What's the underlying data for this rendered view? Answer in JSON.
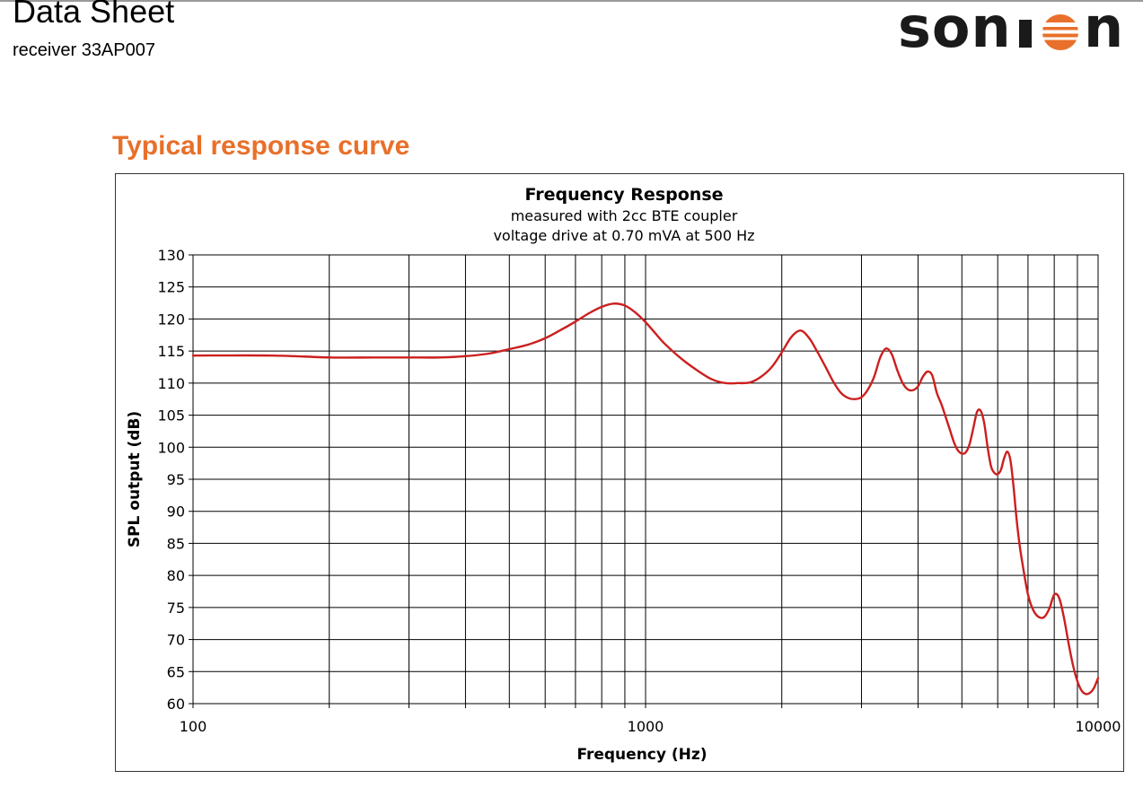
{
  "header": {
    "title": "Data Sheet",
    "subtitle": "receiver 33AP007",
    "logo_text": "sonion",
    "brand_color": "#1a1a1a",
    "logo_accent_color": "#e8702a"
  },
  "section": {
    "heading": "Typical response curve",
    "heading_color": "#e8702a"
  },
  "chart_data": {
    "type": "line",
    "title": "Frequency Response",
    "subtitle_lines": [
      "measured with 2cc BTE coupler",
      "voltage drive at 0.70 mVA at 500 Hz"
    ],
    "xlabel": "Frequency (Hz)",
    "ylabel": "SPL output (dB)",
    "x_scale": "log",
    "xlim": [
      100,
      10000
    ],
    "ylim": [
      60,
      130
    ],
    "x_ticks": [
      100,
      1000,
      10000
    ],
    "x_tick_labels": [
      "100",
      "1000",
      "10000"
    ],
    "y_ticks": [
      60,
      65,
      70,
      75,
      80,
      85,
      90,
      95,
      100,
      105,
      110,
      115,
      120,
      125,
      130
    ],
    "grid": true,
    "legend": "none",
    "series": [
      {
        "color": "#cc1f1f",
        "x": [
          100,
          150,
          200,
          250,
          300,
          350,
          400,
          450,
          500,
          550,
          600,
          650,
          700,
          750,
          800,
          850,
          900,
          950,
          1000,
          1050,
          1100,
          1200,
          1300,
          1400,
          1500,
          1600,
          1700,
          1800,
          1900,
          2000,
          2100,
          2200,
          2300,
          2400,
          2500,
          2600,
          2700,
          2800,
          2900,
          3000,
          3100,
          3200,
          3300,
          3400,
          3500,
          3600,
          3700,
          3800,
          3900,
          4000,
          4100,
          4200,
          4300,
          4400,
          4500,
          4600,
          4700,
          4800,
          4900,
          5000,
          5100,
          5200,
          5300,
          5400,
          5500,
          5600,
          5700,
          5800,
          5900,
          6000,
          6100,
          6200,
          6300,
          6400,
          6500,
          6600,
          6700,
          6800,
          7000,
          7200,
          7400,
          7600,
          7800,
          8000,
          8200,
          8400,
          8600,
          8800,
          9000,
          9200,
          9400,
          9600,
          9800,
          10000
        ],
        "y": [
          114.3,
          114.3,
          114.0,
          114.0,
          114.0,
          114.0,
          114.2,
          114.6,
          115.3,
          116.0,
          117.0,
          118.3,
          119.6,
          120.9,
          121.9,
          122.4,
          122.1,
          121.0,
          119.5,
          117.8,
          116.2,
          113.8,
          112.0,
          110.6,
          110.0,
          110.0,
          110.1,
          111.0,
          112.5,
          114.8,
          117.2,
          118.2,
          117.0,
          114.8,
          112.5,
          110.2,
          108.5,
          107.7,
          107.5,
          107.8,
          109.0,
          111.0,
          114.0,
          115.4,
          114.5,
          112.0,
          110.0,
          109.0,
          108.9,
          109.5,
          111.0,
          111.8,
          111.2,
          108.5,
          106.8,
          104.8,
          102.8,
          100.8,
          99.5,
          99.0,
          99.2,
          100.5,
          103.0,
          105.5,
          105.7,
          103.8,
          100.0,
          97.0,
          96.0,
          95.8,
          96.5,
          98.3,
          99.3,
          98.0,
          94.0,
          89.0,
          85.0,
          82.0,
          77.0,
          74.5,
          73.5,
          73.5,
          74.8,
          77.0,
          76.5,
          73.5,
          69.5,
          66.0,
          63.5,
          62.0,
          61.5,
          61.7,
          62.5,
          64.0
        ]
      }
    ]
  }
}
